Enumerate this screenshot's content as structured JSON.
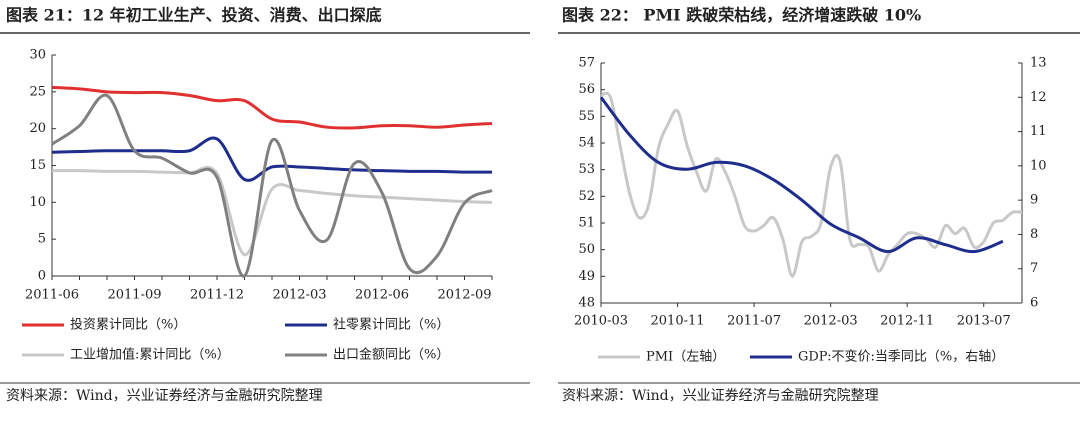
{
  "chart_data": [
    {
      "type": "line",
      "title": "图表 21：12 年初工业生产、投资、消费、出口探底",
      "categories": [
        "2011-06",
        null,
        null,
        "2011-09",
        null,
        null,
        "2011-12",
        null,
        null,
        "2012-03",
        null,
        null,
        "2012-06",
        null,
        null,
        "2012-09",
        null
      ],
      "ylim": [
        0,
        30
      ],
      "yticks": [
        0,
        5,
        10,
        15,
        20,
        25,
        30
      ],
      "series": [
        {
          "name": "投资累计同比（%）",
          "color": "#e03030",
          "values": [
            25.6,
            25.4,
            25.0,
            24.9,
            24.9,
            24.5,
            23.8,
            23.8,
            21.3,
            20.9,
            20.2,
            20.1,
            20.4,
            20.4,
            20.2,
            20.5,
            20.7
          ]
        },
        {
          "name": "社零累计同比（%）",
          "color": "#1f2d8c",
          "values": [
            16.8,
            16.9,
            17.0,
            17.0,
            17.0,
            17.0,
            18.6,
            13.1,
            14.8,
            14.8,
            14.6,
            14.4,
            14.3,
            14.2,
            14.2,
            14.1,
            14.1
          ]
        },
        {
          "name": "工业增加值:累计同比（%）",
          "color": "#c8c8c8",
          "values": [
            14.3,
            14.3,
            14.2,
            14.2,
            14.1,
            14.0,
            13.9,
            2.9,
            11.8,
            11.6,
            11.2,
            10.9,
            10.7,
            10.5,
            10.3,
            10.1,
            10.0
          ]
        },
        {
          "name": "出口金额同比（%）",
          "color": "#808080",
          "values": [
            17.9,
            20.4,
            24.5,
            17.0,
            16.0,
            14.0,
            13.4,
            0,
            18.4,
            8.9,
            4.9,
            15.3,
            11.3,
            1.0,
            2.7,
            9.9,
            11.6
          ]
        }
      ],
      "source": "资料来源：Wind，兴业证券经济与金融研究院整理"
    },
    {
      "type": "line",
      "title": "图表 22：   PMI 跌破荣枯线，经济增速跌破 10%",
      "x": [
        "2010-03",
        "2010-04",
        "2010-05",
        "2010-06",
        "2010-07",
        "2010-08",
        "2010-09",
        "2010-10",
        "2010-11",
        "2010-12",
        "2011-01",
        "2011-02",
        "2011-03",
        "2011-04",
        "2011-05",
        "2011-06",
        "2011-07",
        "2011-08",
        "2011-09",
        "2011-10",
        "2011-11",
        "2011-12",
        "2012-01",
        "2012-02",
        "2012-03",
        "2012-04",
        "2012-05",
        "2012-06",
        "2012-07",
        "2012-08",
        "2012-09",
        "2012-10",
        "2012-11",
        "2012-12",
        "2013-01",
        "2013-02",
        "2013-03",
        "2013-04",
        "2013-05",
        "2013-06",
        "2013-07",
        "2013-08",
        "2013-09",
        "2013-10",
        "2013-11"
      ],
      "xticks": [
        "2010-03",
        "2010-11",
        "2011-07",
        "2012-03",
        "2012-11",
        "2013-07"
      ],
      "ylim": [
        48,
        57
      ],
      "yticks": [
        48,
        49,
        50,
        51,
        52,
        53,
        54,
        55,
        56,
        57
      ],
      "y2lim": [
        6,
        13
      ],
      "y2ticks": [
        6,
        7,
        8,
        9,
        10,
        11,
        12,
        13
      ],
      "series": [
        {
          "name": "PMI（左轴）",
          "color": "#c8c8c8",
          "values": [
            55.8,
            55.7,
            53.9,
            52.1,
            51.2,
            51.7,
            53.8,
            54.7,
            55.2,
            53.9,
            52.9,
            52.2,
            53.4,
            52.9,
            52.0,
            50.9,
            50.7,
            50.9,
            51.2,
            50.4,
            49.0,
            50.3,
            50.5,
            51.0,
            53.1,
            53.3,
            50.4,
            50.2,
            50.1,
            49.2,
            49.8,
            50.2,
            50.6,
            50.6,
            50.4,
            50.1,
            50.9,
            50.6,
            50.8,
            50.1,
            50.3,
            51.0,
            51.1,
            51.4,
            51.4
          ]
        },
        {
          "name": "GDP:不变价:当季同比（%，右轴）",
          "color": "#1f2d8c",
          "axis": "y2",
          "x": [
            "2010-03",
            "2010-06",
            "2010-09",
            "2010-12",
            "2011-03",
            "2011-06",
            "2011-09",
            "2011-12",
            "2012-03",
            "2012-06",
            "2012-09",
            "2012-12",
            "2013-03",
            "2013-06",
            "2013-09"
          ],
          "values": [
            12.0,
            10.9,
            10.1,
            9.9,
            10.1,
            10.0,
            9.6,
            9.0,
            8.3,
            7.9,
            7.5,
            7.9,
            7.7,
            7.5,
            7.8
          ]
        }
      ],
      "source": "资料来源：Wind，兴业证券经济与金融研究院整理"
    }
  ]
}
